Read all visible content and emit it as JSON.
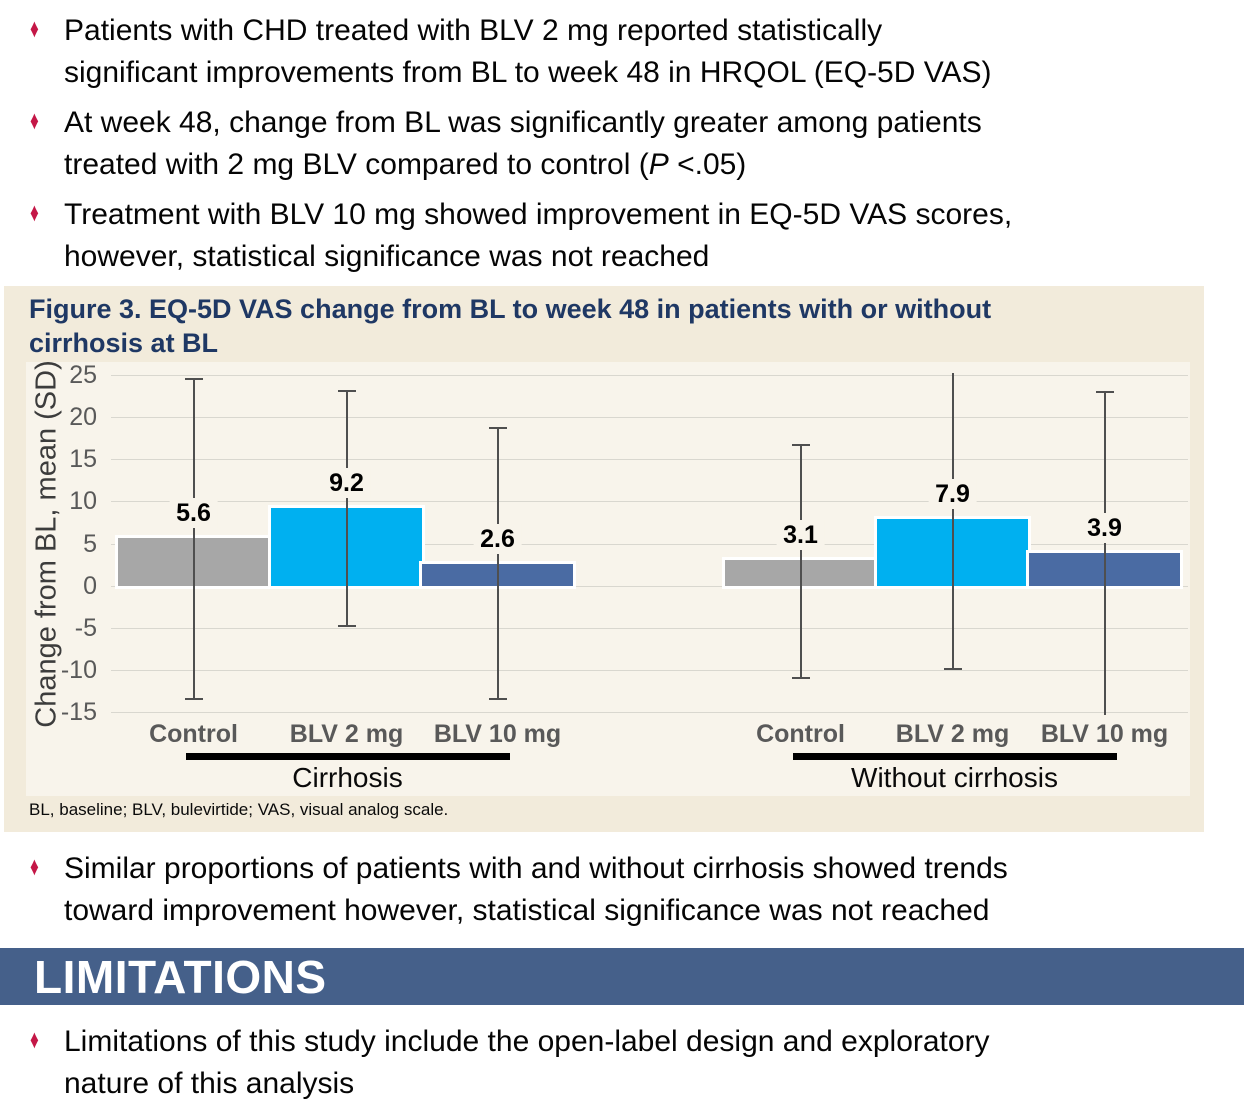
{
  "bullet_marker": {
    "glyph": "♦",
    "color": "#c41747"
  },
  "top_bullets": [
    {
      "lines": [
        [
          {
            "text": "Patients with CHD treated with BLV 2 mg reported statistically"
          }
        ],
        [
          {
            "text": "significant improvements from BL to week 48 in HRQOL (EQ-5D VAS)"
          }
        ]
      ]
    },
    {
      "lines": [
        [
          {
            "text": "At week 48, change from BL was significantly greater among patients"
          }
        ],
        [
          {
            "text": "treated with 2 mg BLV compared to control ("
          },
          {
            "text": "P",
            "italic": true
          },
          {
            "text": " <.05)"
          }
        ]
      ]
    },
    {
      "lines": [
        [
          {
            "text": "Treatment with BLV 10 mg showed improvement in EQ-5D VAS scores,"
          }
        ],
        [
          {
            "text": "however, statistical significance was not reached"
          }
        ]
      ]
    }
  ],
  "figure": {
    "panel_bg": "#f2ebdb",
    "plot_bg": "#f8f4eb",
    "title_color": "#1f3864",
    "title_lines": [
      "Figure 3. EQ-5D VAS change from BL to week 48 in patients with or without",
      "cirrhosis at BL"
    ],
    "footnote": "BL, baseline; BLV, bulevirtide; VAS, visual analog scale."
  },
  "chart_data": {
    "type": "bar",
    "title": "EQ-5D VAS change from BL to week 48 in patients with or without cirrhosis at BL",
    "ylabel": "Change from BL, mean (SD)",
    "xlabel": "",
    "ylim": [
      -15,
      25
    ],
    "ytick_step": 5,
    "grid": true,
    "legend_position": "none",
    "categories": [
      "Control",
      "BLV 2 mg",
      "BLV 10 mg"
    ],
    "bar_colors": [
      "#a7a7a7",
      "#00b0f0",
      "#4a6ba3"
    ],
    "groups": [
      {
        "label": "Cirrhosis",
        "values": [
          5.6,
          9.2,
          2.6
        ],
        "error_low": [
          -13.5,
          -4.8,
          -13.5
        ],
        "error_high": [
          24.5,
          23.1,
          18.7
        ],
        "clip_low": [
          false,
          false,
          false
        ],
        "clip_high": [
          false,
          false,
          false
        ]
      },
      {
        "label": "Without cirrhosis",
        "values": [
          3.1,
          7.9,
          3.9
        ],
        "error_low": [
          -11.0,
          -9.9,
          -15.4
        ],
        "error_high": [
          16.7,
          25.2,
          23.0
        ],
        "clip_low": [
          false,
          false,
          true
        ],
        "clip_high": [
          false,
          true,
          false
        ]
      }
    ],
    "colors": {
      "grid": "#d9d7cf",
      "error": "#4f4f4f",
      "tick": "#595959",
      "axis_label": "#3c3c3c",
      "category": "#595959",
      "value_label": "#000000",
      "group_label": "#0a0a0a",
      "group_line": "#000000"
    }
  },
  "mid_bullets": [
    {
      "lines": [
        [
          {
            "text": "Similar proportions of patients with and without cirrhosis showed trends"
          }
        ],
        [
          {
            "text": "toward improvement however, statistical significance was not reached"
          }
        ]
      ]
    }
  ],
  "limitations": {
    "heading": "LIMITATIONS",
    "bar_bg": "#45608a",
    "text_color": "#ffffff"
  },
  "bottom_bullets": [
    {
      "lines": [
        [
          {
            "text": "Limitations of this study include the open-label design and exploratory"
          }
        ],
        [
          {
            "text": "nature of this analysis"
          }
        ]
      ]
    }
  ]
}
